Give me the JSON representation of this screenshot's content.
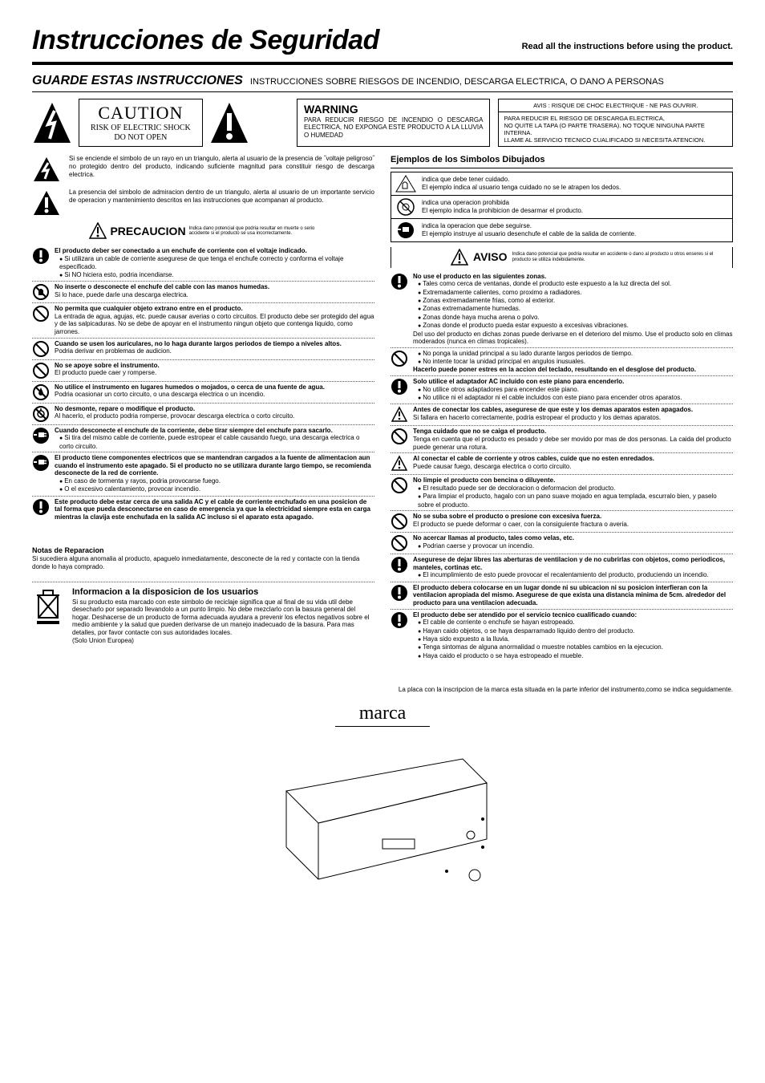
{
  "colors": {
    "fg": "#000000",
    "bg": "#ffffff",
    "dot": "#555555"
  },
  "title": {
    "main": "Instrucciones de Seguridad",
    "sub": "Read all the instructions before using the product."
  },
  "guarde": {
    "bold": "GUARDE ESTAS INSTRUCCIONES",
    "rest": "INSTRUCCIONES SOBRE RIESGOS DE INCENDIO, DESCARGA ELECTRICA, O DANO A PERSONAS"
  },
  "caution": {
    "l1": "CAUTION",
    "l2": "RISK OF ELECTRIC SHOCK",
    "l3": "DO NOT OPEN"
  },
  "warning": {
    "head": "WARNING",
    "body": "PARA REDUCIR RIESGO DE INCENDIO O DESCARGA ELECTRICA, NO EXPONGA ESTE PRODUCTO A LA LLUVIA O HUMEDAD"
  },
  "avis": {
    "top": "AVIS : RISQUE DE CHOC ELECTRIQUE  - NE PAS OUVRIR.",
    "bot": "PARA REDUCIR EL RIESGO DE DESCARGA ELECTRICA,\nNO QUITE LA TAPA (O PARTE TRASERA). NO TOQUE NINGUNA PARTE INTERNA.\nLLAME AL SERVICIO TECNICO CUALIFICADO SI NECESITA ATENCION."
  },
  "sym_bolt": "Si se enciende el simbolo de un rayo en un triangulo, alerta al usuario de la presencia de ˝voltaje peligroso˝ no protegido dentro del producto, indicando suficiente magnitud para constituir riesgo de descarga electrica.",
  "sym_excl": "La presencia del simbolo de admiracion dentro de un triangulo, alerta al usuario de un importante servicio de operacion y mantenimiento descritos en las instrucciones que acompanan al producto.",
  "precaucion": {
    "label": "PRECAUCION",
    "caption": "Indica dano potencial que podria resultar en muerte o serio accidente si el producto se usa incorrectamente."
  },
  "aviso": {
    "label": "AVISO",
    "caption": "Indica dano potencial que podria resultar en accidente o dano al producto u otros enseres si el producto se utiliza indebidamente."
  },
  "ejemplos": {
    "head": "Ejemplos de los Simbolos Dibujados",
    "rows": [
      {
        "l1": "indica que debe tener cuidado.",
        "l2": "El ejemplo indica al usuario tenga cuidado no se le atrapen los dedos."
      },
      {
        "l1": "indica una operacion prohibida",
        "l2": "El ejemplo indica la prohibicion de desarmar el producto."
      },
      {
        "l1": "indica la operacion que debe seguirse.",
        "l2": "El ejemplo instruye al usuario desenchufe el cable de la salida de corriente."
      }
    ]
  },
  "left_items": [
    {
      "icon": "excl-fill",
      "hd": "El producto deber ser conectado a un enchufe de corriente con el voltaje indicado.",
      "bl": [
        "Si utilizara un cable de corriente asegurese de que tenga el enchufe correcto y conforma el voltaje especificado.",
        "Si NO hiciera esto, podria incendiarse."
      ]
    },
    {
      "icon": "no-hand",
      "hd": "No inserte o desconecte el enchufe del cable con las manos humedas.",
      "tx": "Si lo hace, puede darle una descarga electrica."
    },
    {
      "icon": "prohibit",
      "hd": "No permita que cualquier objeto extrano entre en el producto.",
      "tx": "La entrada de agua, agujas, etc. puede causar averias o corto circuitos. El producto debe ser protegido del agua y de las salpicaduras. No se debe de apoyar en el instrumento ningun objeto que contenga liquido, como jarrones."
    },
    {
      "icon": "prohibit",
      "hd": "Cuando se usen los auriculares, no lo haga durante largos periodos de tiempo a niveles altos.",
      "tx": "Podria derivar en problemas de audicion."
    },
    {
      "icon": "prohibit",
      "hd": "No se apoye sobre el instrumento.",
      "tx": "El producto puede caer y romperse."
    },
    {
      "icon": "no-water",
      "hd": "No utilice el instrumento en lugares humedos o mojados, o cerca de una fuente de agua.",
      "tx": "Podria ocasionar un corto circuito, o una descarga electrica o un incendio."
    },
    {
      "icon": "no-disasm",
      "hd": "No desmonte, repare o modifique el producto.",
      "tx": "Al hacerlo, el producto podria romperse, provocar descarga electrica o corto circuito."
    },
    {
      "icon": "plug-fill",
      "hd": "Cuando desconecte el enchufe de la corriente, debe tirar siempre del enchufe para sacarlo.",
      "bl": [
        "Si tira del mismo cable de corriente, puede estropear el cable causando fuego, una descarga electrica o corto circuito."
      ]
    },
    {
      "icon": "plug-fill",
      "hd": "El producto tiene componentes electricos que se mantendran cargados a la fuente de alimentacion aun cuando el instrumento este apagado. Si el producto no se utilizara durante largo tiempo, se recomienda desconecte de la red de corriente.",
      "bl": [
        "En caso de tormenta y rayos, podria provocarse fuego.",
        "O el excesivo calentamiento, provocar incendio."
      ]
    },
    {
      "icon": "excl-fill",
      "hd": "Este producto debe estar cerca de una salida AC y el cable de corriente enchufado en una posicion de tal forma que pueda desconectarse en caso de emergencia ya que la electricidad siempre esta en carga mientras la clavija este enchufada en la salida AC incluso si el aparato esta apagado."
    }
  ],
  "right_items": [
    {
      "icon": "excl-fill",
      "hd": "No use el producto en las siguientes zonas.",
      "bl": [
        "Tales como cerca de ventanas, donde el producto este expuesto a la luz directa del sol.",
        "Extremadamente calientes, como proximo a radiadores.",
        "Zonas extremadamente frias, como al exterior.",
        "Zonas extremadamente humedas.",
        "Zonas donde haya mucha arena o polvo.",
        "Zonas donde el producto pueda estar expuesto a excesivas vibraciones."
      ],
      "tx2": "Del uso del producto en dichas zonas puede derivarse en el deterioro del mismo. Use el producto solo en climas moderados (nunca en climas tropicales)."
    },
    {
      "icon": "prohibit",
      "bl": [
        "No ponga la unidad principal a su lado durante largos periodos de tiempo.",
        "No intente tocar la unidad principal en angulos inusuales."
      ],
      "hd2": "Hacerlo puede poner estres en la accion del teclado, resultando en el desglose del producto."
    },
    {
      "icon": "excl-fill",
      "hd": "Solo utilice el adaptador AC incluido con este piano para encenderlo.",
      "bl": [
        "No utilice otros adaptadores para encender este piano.",
        "No utilice ni el adaptador ni el cable incluidos con este piano para encender otros aparatos."
      ]
    },
    {
      "icon": "warn-tri",
      "hd": "Antes de conectar los cables, asegurese de que este y los demas aparatos esten apagados.",
      "tx": "Si fallara en hacerlo correctamente, podria estropear el producto y los demas aparatos."
    },
    {
      "icon": "prohibit",
      "hd": "Tenga cuidado que no se caiga el producto.",
      "tx": "Tenga en cuenta que el producto es pesado y debe ser movido por mas de dos personas. La caida del producto puede generar una rotura."
    },
    {
      "icon": "warn-tri",
      "hd": "Al conectar el cable de corriente y otros cables, cuide que no esten enredados.",
      "tx": "Puede causar fuego, descarga electrica o corto circuito."
    },
    {
      "icon": "prohibit",
      "hd": "No limpie el producto con bencina o diluyente.",
      "bl": [
        "El resultado puede ser de decoloracion o deformacion del producto.",
        "Para limpiar el producto, hagalo con un pano suave mojado en agua templada, escurralo bien, y paselo sobre el producto."
      ]
    },
    {
      "icon": "prohibit",
      "hd": "No se suba sobre el producto o presione con excesiva fuerza.",
      "tx": "El producto se puede deformar o caer, con la consiguiente fractura o averia."
    },
    {
      "icon": "prohibit",
      "hd": "No acercar llamas al producto, tales como velas, etc.",
      "bl": [
        "Podrian caerse y provocar un incendio."
      ]
    },
    {
      "icon": "excl-fill",
      "hd": "Asegurese de dejar libres las aberturas de ventilacion y de no cubrirlas con objetos, como periodicos, manteles, cortinas etc.",
      "bl": [
        "El incumplimiento de esto puede provocar el recalentamiento del producto, produciendo un incendio."
      ]
    },
    {
      "icon": "excl-fill",
      "hd": "El producto debera colocarse en un lugar donde ni su ubicacion ni su posicion interfieran con la ventilacion apropiada del mismo. Asegurese de que exista una distancia minima de 5cm. alrededor del producto para una ventilacion adecuada."
    },
    {
      "icon": "excl-fill",
      "hd": "El producto debe ser atendido por el servicio tecnico cualificado cuando:",
      "bl": [
        "El cable de corriente o enchufe se hayan estropeado.",
        "Hayan caido objetos, o se haya desparramado liquido dentro del producto.",
        "Haya sido expuesto a la lluvia.",
        "Tenga sintomas de alguna anormalidad o muestre notables cambios en la ejecucion.",
        "Haya caido el producto o se haya estropeado el mueble."
      ]
    }
  ],
  "notas": {
    "head": "Notas de Reparacion",
    "body": "Si sucediera alguna anomalia al producto, apaguelo inmediatamente, desconecte de la red y contacte con la tienda donde lo haya comprado."
  },
  "info": {
    "head": "Informacion a la disposicion de los usuarios",
    "body": "Si su producto esta marcado con este simbolo de reciclaje significa que al final de su vida util debe desecharlo por separado llevandolo a un punto limpio. No debe mezclarlo con la basura general del hogar. Deshacerse de un producto de forma adecuada ayudara a prevenir los efectos negativos sobre el medio ambiente y la salud que pueden derivarse de un manejo inadecuado de la basura. Para mas detalles, por favor contacte con sus autoridades locales.\n(Solo Union Europea)"
  },
  "placa_note": "La placa con la inscripcion de la marca esta situada en la parte inferior del instrumento,como se indica seguidamente.",
  "marca": "marca"
}
